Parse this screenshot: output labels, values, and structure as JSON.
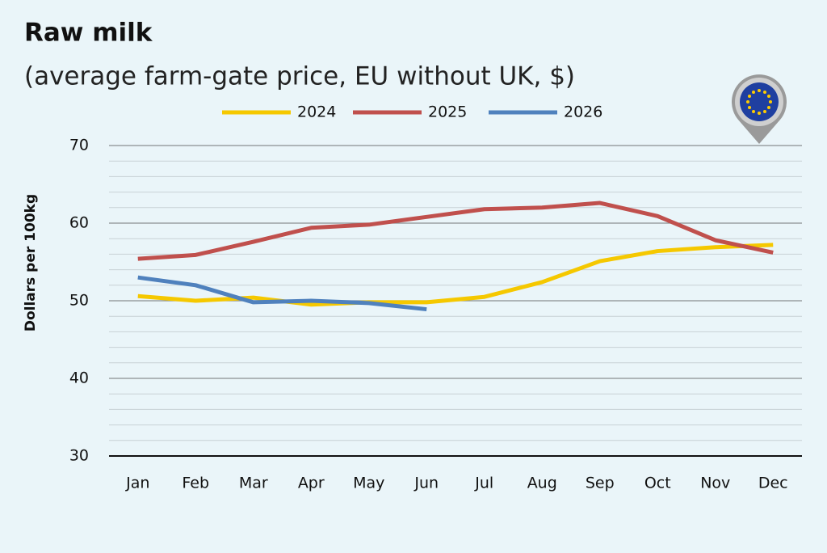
{
  "chart_data": {
    "type": "line",
    "title": "Raw milk",
    "subtitle": "(average farm-gate price, EU without UK, $)",
    "y_label": "Dollars per 100kg",
    "categories": [
      "Jan",
      "Feb",
      "Mar",
      "Apr",
      "May",
      "Jun",
      "Jul",
      "Aug",
      "Sep",
      "Oct",
      "Nov",
      "Dec"
    ],
    "series": [
      {
        "name": "2024",
        "color": "#f5c800",
        "values": [
          50.6,
          50.0,
          50.4,
          49.5,
          49.8,
          49.8,
          50.5,
          52.4,
          55.1,
          56.4,
          56.9,
          57.2
        ]
      },
      {
        "name": "2025",
        "color": "#c0504d",
        "values": [
          55.4,
          55.9,
          57.6,
          59.4,
          59.8,
          60.8,
          61.8,
          62.0,
          62.6,
          60.9,
          57.8,
          56.2
        ]
      },
      {
        "name": "2026",
        "color": "#4f81bd",
        "values": [
          53.0,
          52.0,
          49.8,
          50.0,
          49.7,
          48.9,
          null,
          null,
          null,
          null,
          null,
          null
        ]
      }
    ],
    "ylim": [
      30,
      70
    ],
    "yticks": [
      30,
      40,
      50,
      60,
      70
    ],
    "minor_yticks": [
      32,
      34,
      36,
      38,
      42,
      44,
      46,
      48,
      52,
      54,
      56,
      58,
      62,
      64,
      66,
      68
    ],
    "grid": true,
    "legend": "top"
  }
}
